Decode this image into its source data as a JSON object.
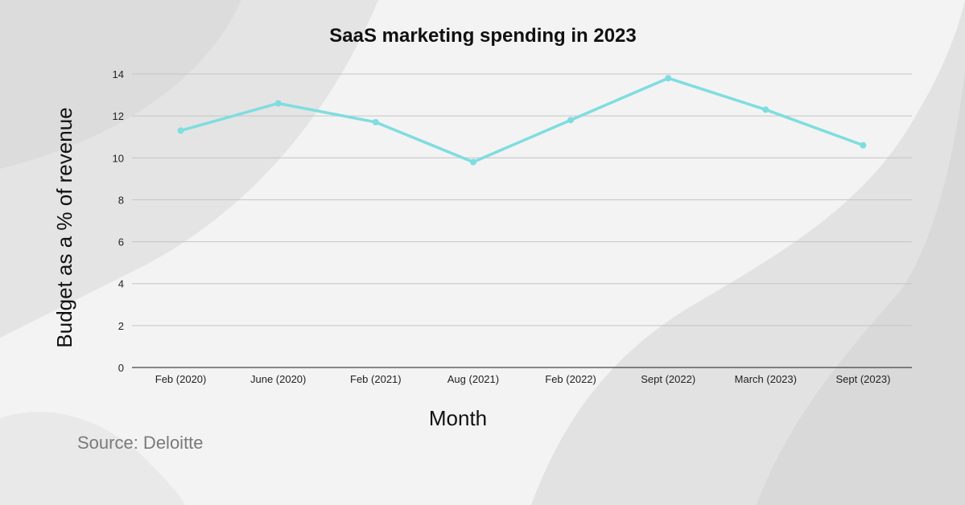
{
  "chart_data": {
    "type": "line",
    "title": "SaaS marketing spending in 2023",
    "xlabel": "Month",
    "ylabel": "Budget as a % of revenue",
    "categories": [
      "Feb (2020)",
      "June (2020)",
      "Feb (2021)",
      "Aug (2021)",
      "Feb (2022)",
      "Sept (2022)",
      "March (2023)",
      "Sept (2023)"
    ],
    "series": [
      {
        "values": [
          11.3,
          12.6,
          11.7,
          9.8,
          11.8,
          13.8,
          12.3,
          10.6
        ]
      }
    ],
    "ylim": [
      0,
      14
    ],
    "yticks": [
      0,
      2,
      4,
      6,
      8,
      10,
      12,
      14
    ],
    "grid": true,
    "line_color": "#7fdde0",
    "source": "Source: Deloitte"
  }
}
